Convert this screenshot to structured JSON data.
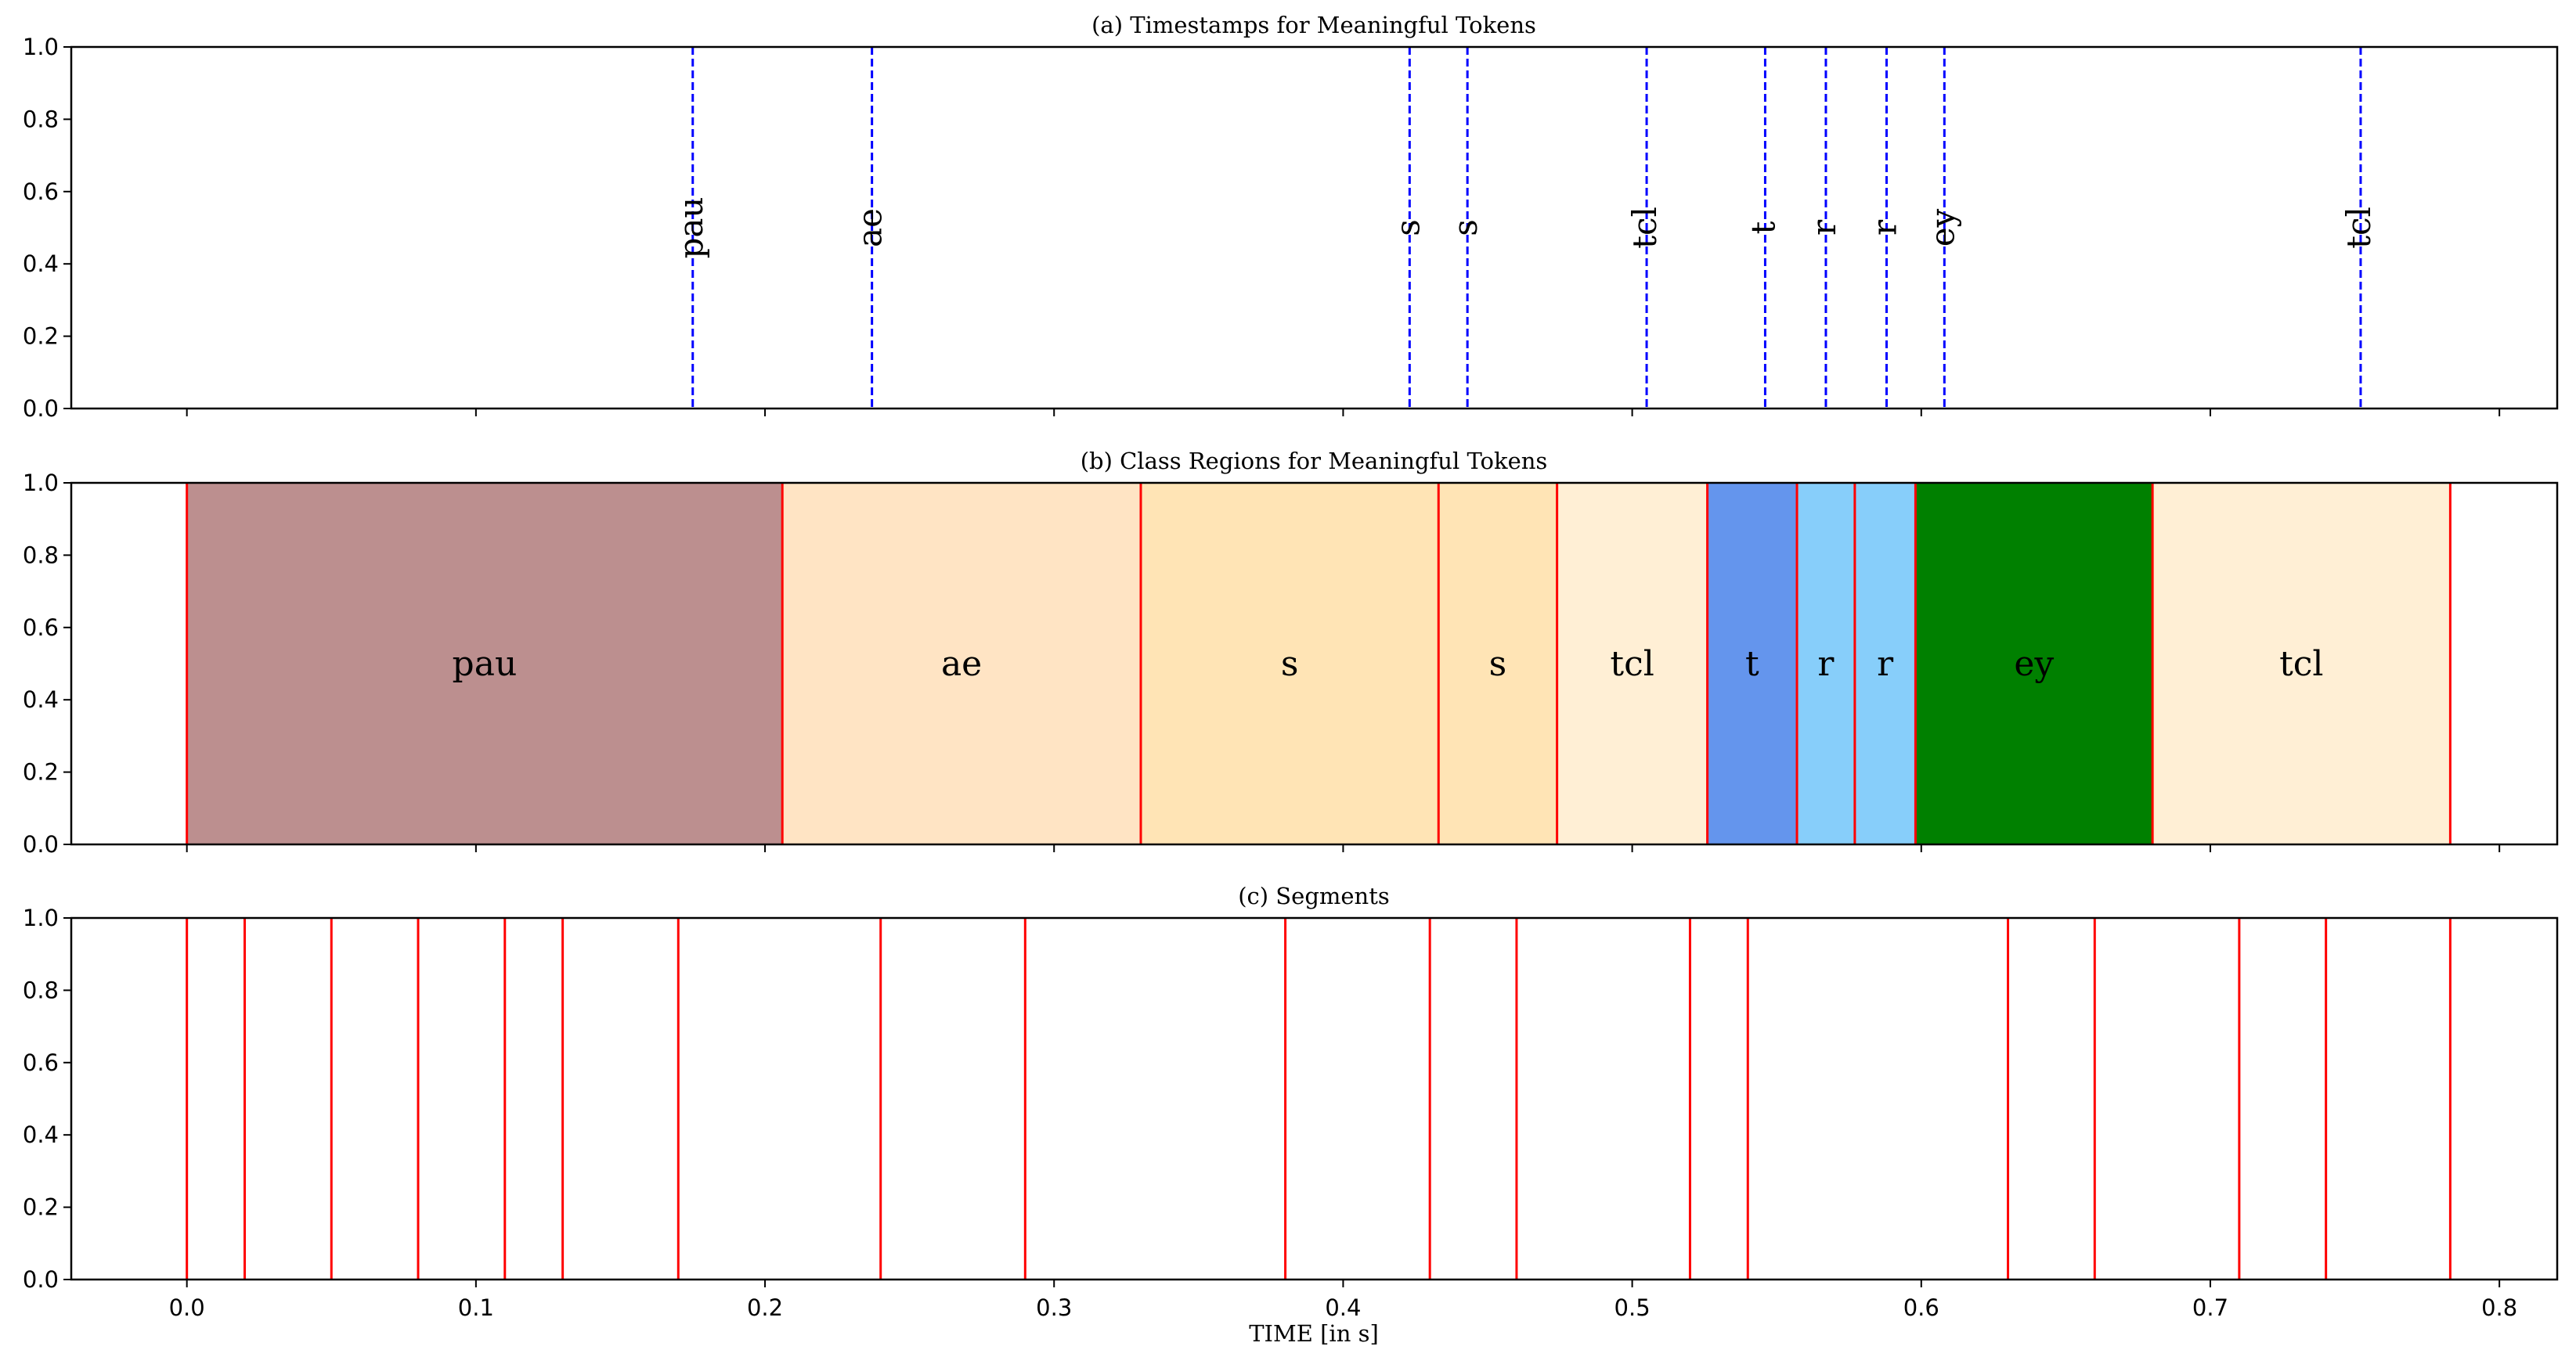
{
  "chart_data": [
    {
      "type": "event-lines",
      "title": "(a) Timestamps for Meaningful Tokens",
      "xlim": [
        -0.04,
        0.82
      ],
      "ylim": [
        0.0,
        1.0
      ],
      "yticks": [
        "0.0",
        "0.2",
        "0.4",
        "0.6",
        "0.8",
        "1.0"
      ],
      "line_color": "#0000ff",
      "line_style": "dashed",
      "events": [
        {
          "label": "pau",
          "x": 0.175
        },
        {
          "label": "ae",
          "x": 0.237
        },
        {
          "label": "s",
          "x": 0.423
        },
        {
          "label": "s",
          "x": 0.443
        },
        {
          "label": "tcl",
          "x": 0.505
        },
        {
          "label": "t",
          "x": 0.546
        },
        {
          "label": "r",
          "x": 0.567
        },
        {
          "label": "r",
          "x": 0.588
        },
        {
          "label": "ey",
          "x": 0.608
        },
        {
          "label": "tcl",
          "x": 0.752
        }
      ]
    },
    {
      "type": "regions",
      "title": "(b) Class Regions for Meaningful Tokens",
      "xlim": [
        -0.04,
        0.82
      ],
      "ylim": [
        0.0,
        1.0
      ],
      "yticks": [
        "0.0",
        "0.2",
        "0.4",
        "0.6",
        "0.8",
        "1.0"
      ],
      "boundary_color": "#ff0000",
      "regions": [
        {
          "label": "pau",
          "start": 0.0,
          "end": 0.206,
          "color": "#bc8f8f"
        },
        {
          "label": "ae",
          "start": 0.206,
          "end": 0.33,
          "color": "#ffe4c4"
        },
        {
          "label": "s",
          "start": 0.33,
          "end": 0.433,
          "color": "#ffe4b5"
        },
        {
          "label": "s",
          "start": 0.433,
          "end": 0.474,
          "color": "#ffe4b5"
        },
        {
          "label": "tcl",
          "start": 0.474,
          "end": 0.526,
          "color": "#ffefd5"
        },
        {
          "label": "t",
          "start": 0.526,
          "end": 0.557,
          "color": "#6495ed"
        },
        {
          "label": "r",
          "start": 0.557,
          "end": 0.577,
          "color": "#87cefa"
        },
        {
          "label": "r",
          "start": 0.577,
          "end": 0.598,
          "color": "#87cefa"
        },
        {
          "label": "ey",
          "start": 0.598,
          "end": 0.68,
          "color": "#008000"
        },
        {
          "label": "tcl",
          "start": 0.68,
          "end": 0.783,
          "color": "#ffefd5"
        }
      ]
    },
    {
      "type": "event-lines",
      "title": "(c) Segments",
      "xlim": [
        -0.04,
        0.82
      ],
      "ylim": [
        0.0,
        1.0
      ],
      "yticks": [
        "0.0",
        "0.2",
        "0.4",
        "0.6",
        "0.8",
        "1.0"
      ],
      "xticks": [
        "0.0",
        "0.1",
        "0.2",
        "0.3",
        "0.4",
        "0.5",
        "0.6",
        "0.7",
        "0.8"
      ],
      "xlabel": "TIME [in s]",
      "line_color": "#ff0000",
      "segments": [
        0.0,
        0.02,
        0.05,
        0.08,
        0.11,
        0.13,
        0.17,
        0.24,
        0.29,
        0.38,
        0.43,
        0.46,
        0.52,
        0.54,
        0.63,
        0.66,
        0.71,
        0.74,
        0.783
      ]
    }
  ]
}
